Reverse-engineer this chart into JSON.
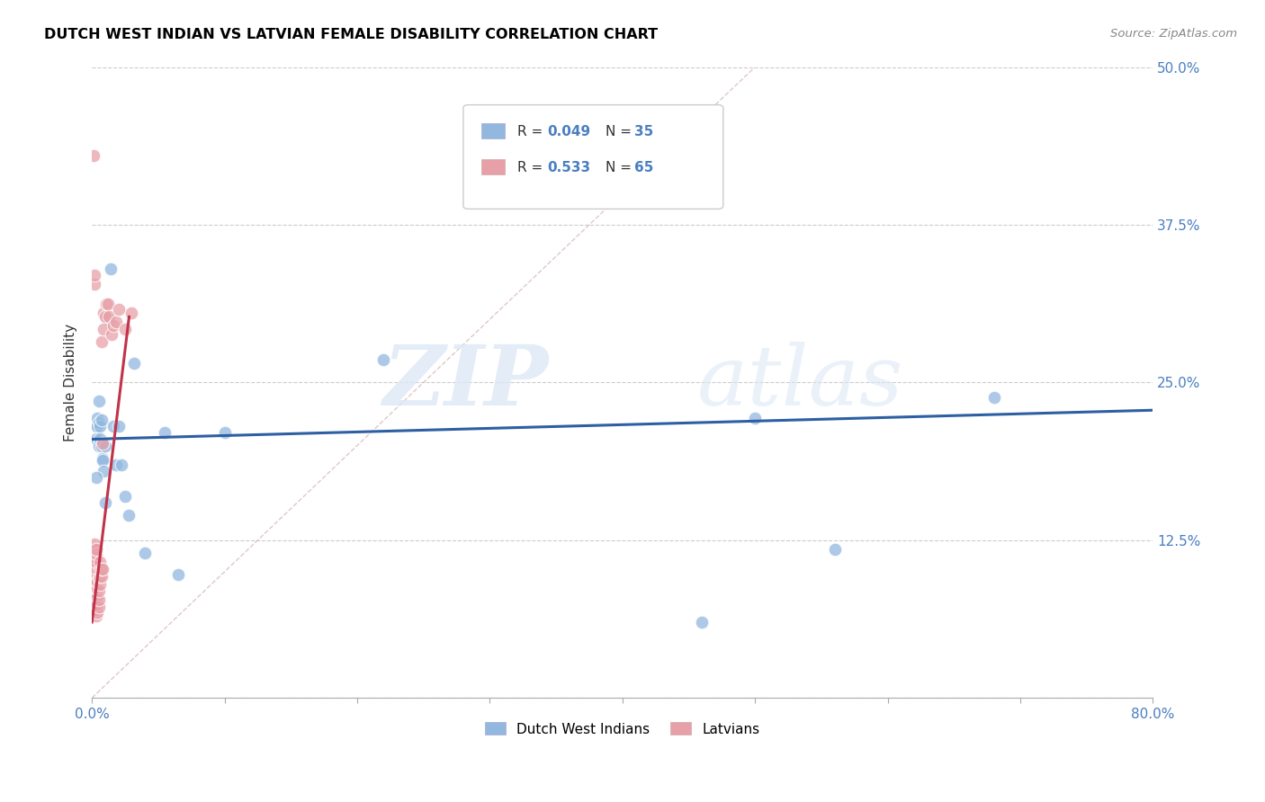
{
  "title": "DUTCH WEST INDIAN VS LATVIAN FEMALE DISABILITY CORRELATION CHART",
  "source": "Source: ZipAtlas.com",
  "ylabel": "Female Disability",
  "xlim": [
    0.0,
    0.8
  ],
  "ylim": [
    0.0,
    0.5
  ],
  "xticks": [
    0.0,
    0.1,
    0.2,
    0.3,
    0.4,
    0.5,
    0.6,
    0.7,
    0.8
  ],
  "yticks": [
    0.0,
    0.125,
    0.25,
    0.375,
    0.5
  ],
  "color_blue": "#92b8df",
  "color_pink": "#e8a0a8",
  "trendline_blue": "#2e5fa3",
  "trendline_pink": "#c0334a",
  "diagonal_color": "#d4b0b0",
  "R_blue": 0.049,
  "N_blue": 35,
  "R_pink": 0.533,
  "N_pink": 65,
  "watermark_zip": "ZIP",
  "watermark_atlas": "atlas",
  "legend_label_blue": "Dutch West Indians",
  "legend_label_pink": "Latvians",
  "dwi_x": [
    0.003,
    0.003,
    0.004,
    0.004,
    0.005,
    0.005,
    0.005,
    0.006,
    0.006,
    0.007,
    0.007,
    0.008,
    0.008,
    0.009,
    0.01,
    0.012,
    0.014,
    0.016,
    0.018,
    0.02,
    0.022,
    0.025,
    0.028,
    0.032,
    0.04,
    0.055,
    0.065,
    0.1,
    0.22,
    0.46,
    0.5,
    0.56,
    0.68,
    0.003,
    0.01
  ],
  "dwi_y": [
    0.215,
    0.205,
    0.222,
    0.215,
    0.235,
    0.218,
    0.2,
    0.215,
    0.205,
    0.22,
    0.2,
    0.19,
    0.188,
    0.18,
    0.2,
    0.3,
    0.34,
    0.215,
    0.185,
    0.215,
    0.185,
    0.16,
    0.145,
    0.265,
    0.115,
    0.21,
    0.098,
    0.21,
    0.268,
    0.06,
    0.222,
    0.118,
    0.238,
    0.175,
    0.155
  ],
  "lat_x": [
    0.001,
    0.001,
    0.001,
    0.001,
    0.001,
    0.001,
    0.001,
    0.001,
    0.001,
    0.001,
    0.002,
    0.002,
    0.002,
    0.002,
    0.002,
    0.002,
    0.002,
    0.002,
    0.002,
    0.002,
    0.002,
    0.002,
    0.002,
    0.002,
    0.003,
    0.003,
    0.003,
    0.003,
    0.003,
    0.003,
    0.003,
    0.003,
    0.003,
    0.003,
    0.003,
    0.004,
    0.004,
    0.004,
    0.004,
    0.004,
    0.005,
    0.005,
    0.005,
    0.005,
    0.006,
    0.006,
    0.006,
    0.006,
    0.007,
    0.007,
    0.007,
    0.008,
    0.008,
    0.009,
    0.009,
    0.01,
    0.011,
    0.012,
    0.013,
    0.015,
    0.016,
    0.018,
    0.02,
    0.025,
    0.03
  ],
  "lat_y": [
    0.07,
    0.075,
    0.08,
    0.085,
    0.088,
    0.092,
    0.096,
    0.1,
    0.105,
    0.43,
    0.068,
    0.072,
    0.078,
    0.082,
    0.088,
    0.093,
    0.098,
    0.102,
    0.108,
    0.112,
    0.118,
    0.122,
    0.328,
    0.335,
    0.065,
    0.07,
    0.075,
    0.082,
    0.088,
    0.093,
    0.098,
    0.103,
    0.108,
    0.114,
    0.118,
    0.068,
    0.074,
    0.08,
    0.086,
    0.092,
    0.072,
    0.078,
    0.085,
    0.095,
    0.09,
    0.096,
    0.102,
    0.108,
    0.096,
    0.102,
    0.282,
    0.102,
    0.202,
    0.292,
    0.305,
    0.302,
    0.312,
    0.312,
    0.302,
    0.288,
    0.295,
    0.298,
    0.308,
    0.292,
    0.305
  ]
}
